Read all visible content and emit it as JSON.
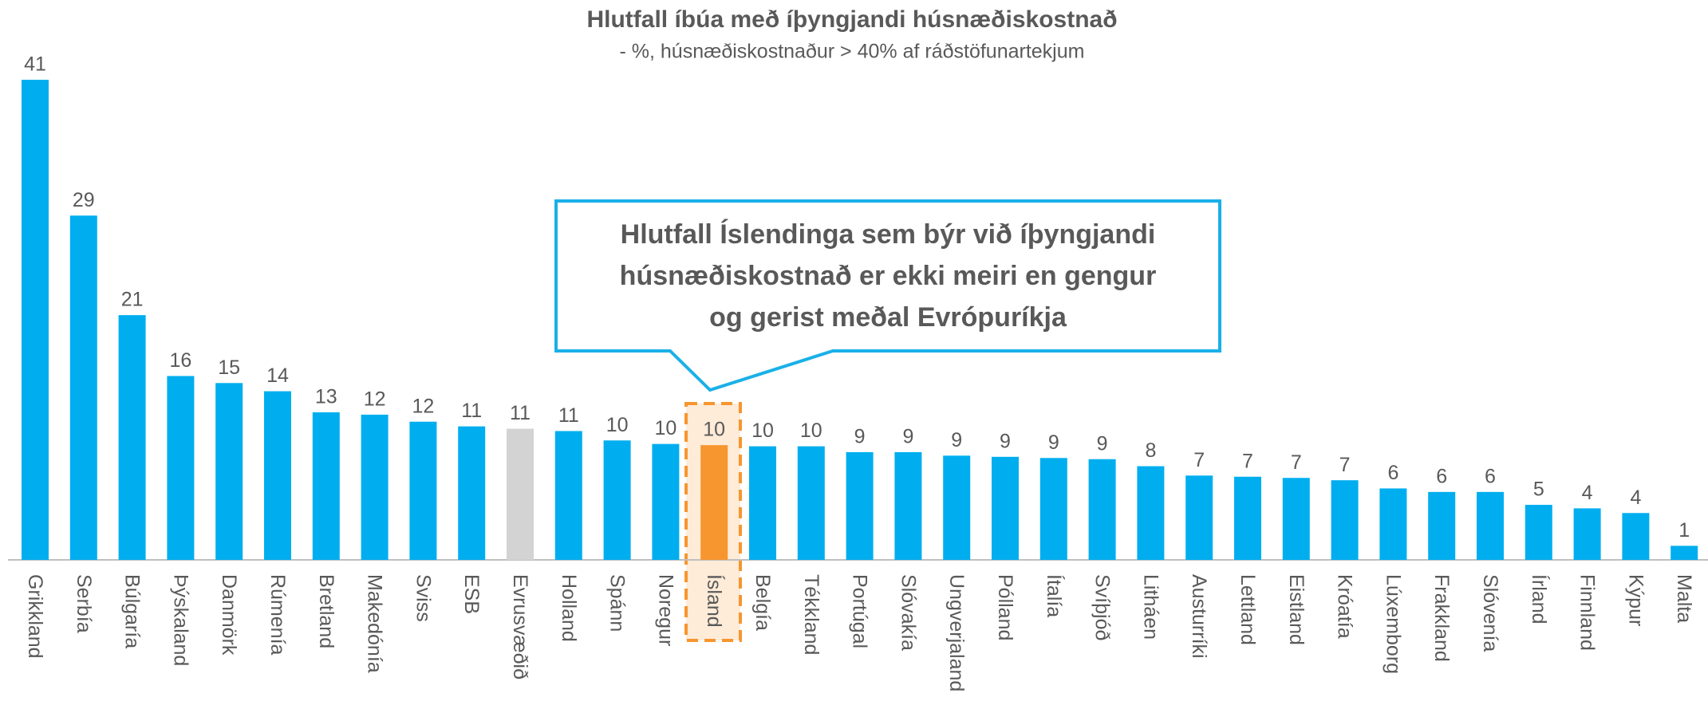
{
  "chart_data": {
    "type": "bar",
    "title": "Hlutfall íbúa með íþyngjandi húsnæðiskostnað",
    "subtitle": "- %, húsnæðiskostnaður > 40% af ráðstöfunartekjum",
    "annotation": [
      "Hlutfall Íslendinga sem býr við íþyngjandi",
      "húsnæðiskostnað er ekki meiri en gengur",
      "og gerist meðal Evrópuríkja"
    ],
    "categories": [
      "Grikkland",
      "Serbía",
      "Búlgaría",
      "Þýskaland",
      "Danmörk",
      "Rúmenía",
      "Bretland",
      "Makedónía",
      "Sviss",
      "ESB",
      "Evrusvæðið",
      "Holland",
      "Spánn",
      "Noregur",
      "Ísland",
      "Belgía",
      "Tékkland",
      "Portúgal",
      "Slóvakía",
      "Ungverjaland",
      "Pólland",
      "Ítalía",
      "Svíþjóð",
      "Litháen",
      "Austurríki",
      "Lettland",
      "Eistland",
      "Króatía",
      "Lúxemborg",
      "Frakkland",
      "Slóvenía",
      "Írland",
      "Finnland",
      "Kýpur",
      "Malta"
    ],
    "values": [
      41,
      29.4,
      20.9,
      15.7,
      15.1,
      14.4,
      12.6,
      12.4,
      11.8,
      11.4,
      11.2,
      11.0,
      10.2,
      9.9,
      9.8,
      9.7,
      9.7,
      9.2,
      9.2,
      8.9,
      8.8,
      8.7,
      8.6,
      8.0,
      7.2,
      7.1,
      7.0,
      6.8,
      6.1,
      5.8,
      5.8,
      4.7,
      4.4,
      4.0,
      1.2
    ],
    "value_labels": [
      "41",
      "29",
      "21",
      "16",
      "15",
      "14",
      "13",
      "12",
      "12",
      "11",
      "11",
      "11",
      "10",
      "10",
      "10",
      "10",
      "10",
      "9",
      "9",
      "9",
      "9",
      "9",
      "9",
      "8",
      "7",
      "7",
      "7",
      "7",
      "6",
      "6",
      "6",
      "5",
      "4",
      "4",
      "1"
    ],
    "colors": [
      "#00aeef",
      "#00aeef",
      "#00aeef",
      "#00aeef",
      "#00aeef",
      "#00aeef",
      "#00aeef",
      "#00aeef",
      "#00aeef",
      "#00aeef",
      "#d3d3d3",
      "#00aeef",
      "#00aeef",
      "#00aeef",
      "#f7962f",
      "#00aeef",
      "#00aeef",
      "#00aeef",
      "#00aeef",
      "#00aeef",
      "#00aeef",
      "#00aeef",
      "#00aeef",
      "#00aeef",
      "#00aeef",
      "#00aeef",
      "#00aeef",
      "#00aeef",
      "#00aeef",
      "#00aeef",
      "#00aeef",
      "#00aeef",
      "#00aeef",
      "#00aeef",
      "#00aeef"
    ]
  }
}
